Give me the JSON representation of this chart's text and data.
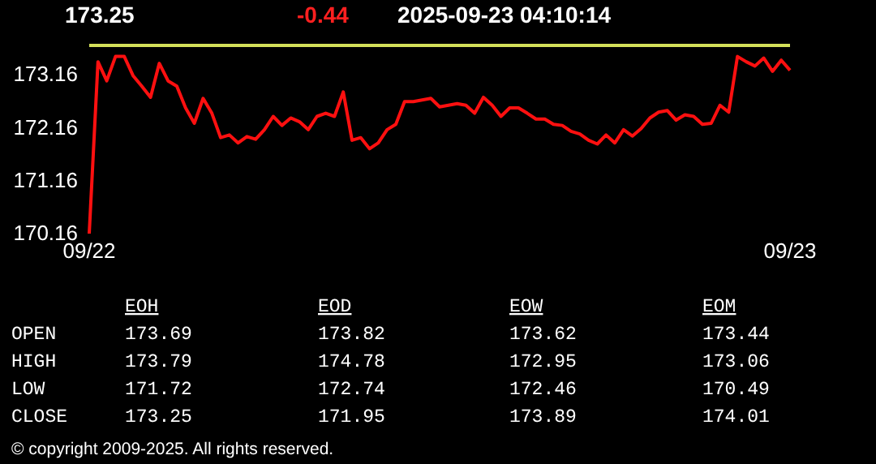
{
  "chart_data": [
    {
      "type": "line",
      "title": "173.25",
      "annotations": [
        "-0.44",
        "2025-09-23 04:10:14"
      ],
      "categories": [
        "09/22",
        null,
        null,
        null,
        null,
        null,
        null,
        null,
        null,
        null,
        null,
        null,
        null,
        null,
        null,
        null,
        null,
        null,
        null,
        null,
        null,
        null,
        null,
        null,
        null,
        null,
        null,
        null,
        null,
        null,
        null,
        null,
        null,
        null,
        null,
        null,
        null,
        null,
        null,
        null,
        null,
        null,
        null,
        null,
        null,
        null,
        null,
        null,
        null,
        null,
        null,
        null,
        null,
        null,
        null,
        null,
        null,
        null,
        null,
        null,
        null,
        null,
        null,
        null,
        null,
        null,
        null,
        null,
        null,
        null,
        null,
        null,
        null,
        null,
        null,
        null,
        null,
        null,
        null,
        null,
        "09/23"
      ],
      "ylim": [
        170.16,
        173.8
      ],
      "yticks": [
        170.16,
        171.16,
        172.16,
        173.16
      ],
      "ref_lines": [
        {
          "axis": "y",
          "value": 173.71,
          "color": "#d4e05a"
        }
      ],
      "series": [
        {
          "color": "#ff1010",
          "values": [
            170.16,
            173.4,
            173.04,
            173.5,
            173.5,
            173.14,
            172.94,
            172.73,
            173.37,
            173.04,
            172.94,
            172.53,
            172.24,
            172.71,
            172.43,
            171.97,
            172.02,
            171.87,
            171.99,
            171.94,
            172.12,
            172.37,
            172.2,
            172.34,
            172.27,
            172.12,
            172.37,
            172.43,
            172.37,
            172.83,
            171.92,
            171.97,
            171.76,
            171.87,
            172.12,
            172.22,
            172.65,
            172.65,
            172.68,
            172.71,
            172.55,
            172.58,
            172.61,
            172.58,
            172.43,
            172.73,
            172.58,
            172.37,
            172.53,
            172.53,
            172.43,
            172.32,
            172.32,
            172.22,
            172.2,
            172.09,
            172.04,
            171.92,
            171.85,
            172.02,
            171.87,
            172.12,
            172.0,
            172.14,
            172.34,
            172.45,
            172.48,
            172.3,
            172.4,
            172.37,
            172.22,
            172.24,
            172.58,
            172.45,
            173.5,
            173.4,
            173.32,
            173.47,
            173.22,
            173.43,
            173.24
          ]
        }
      ]
    },
    {
      "type": "other",
      "categories": [
        "EOH",
        "EOD",
        "EOW",
        "EOM"
      ],
      "data_labels": true,
      "series": [
        {
          "name": "OPEN",
          "values": [
            173.69,
            173.82,
            173.62,
            173.44
          ]
        },
        {
          "name": "HIGH",
          "values": [
            173.79,
            174.78,
            172.95,
            173.06
          ]
        },
        {
          "name": "LOW",
          "values": [
            171.72,
            172.74,
            172.46,
            170.49
          ]
        },
        {
          "name": "CLOSE",
          "values": [
            173.25,
            171.95,
            173.89,
            174.01
          ]
        }
      ],
      "annotations": [
        "© copyright 2009-2025. All rights reserved."
      ]
    }
  ]
}
